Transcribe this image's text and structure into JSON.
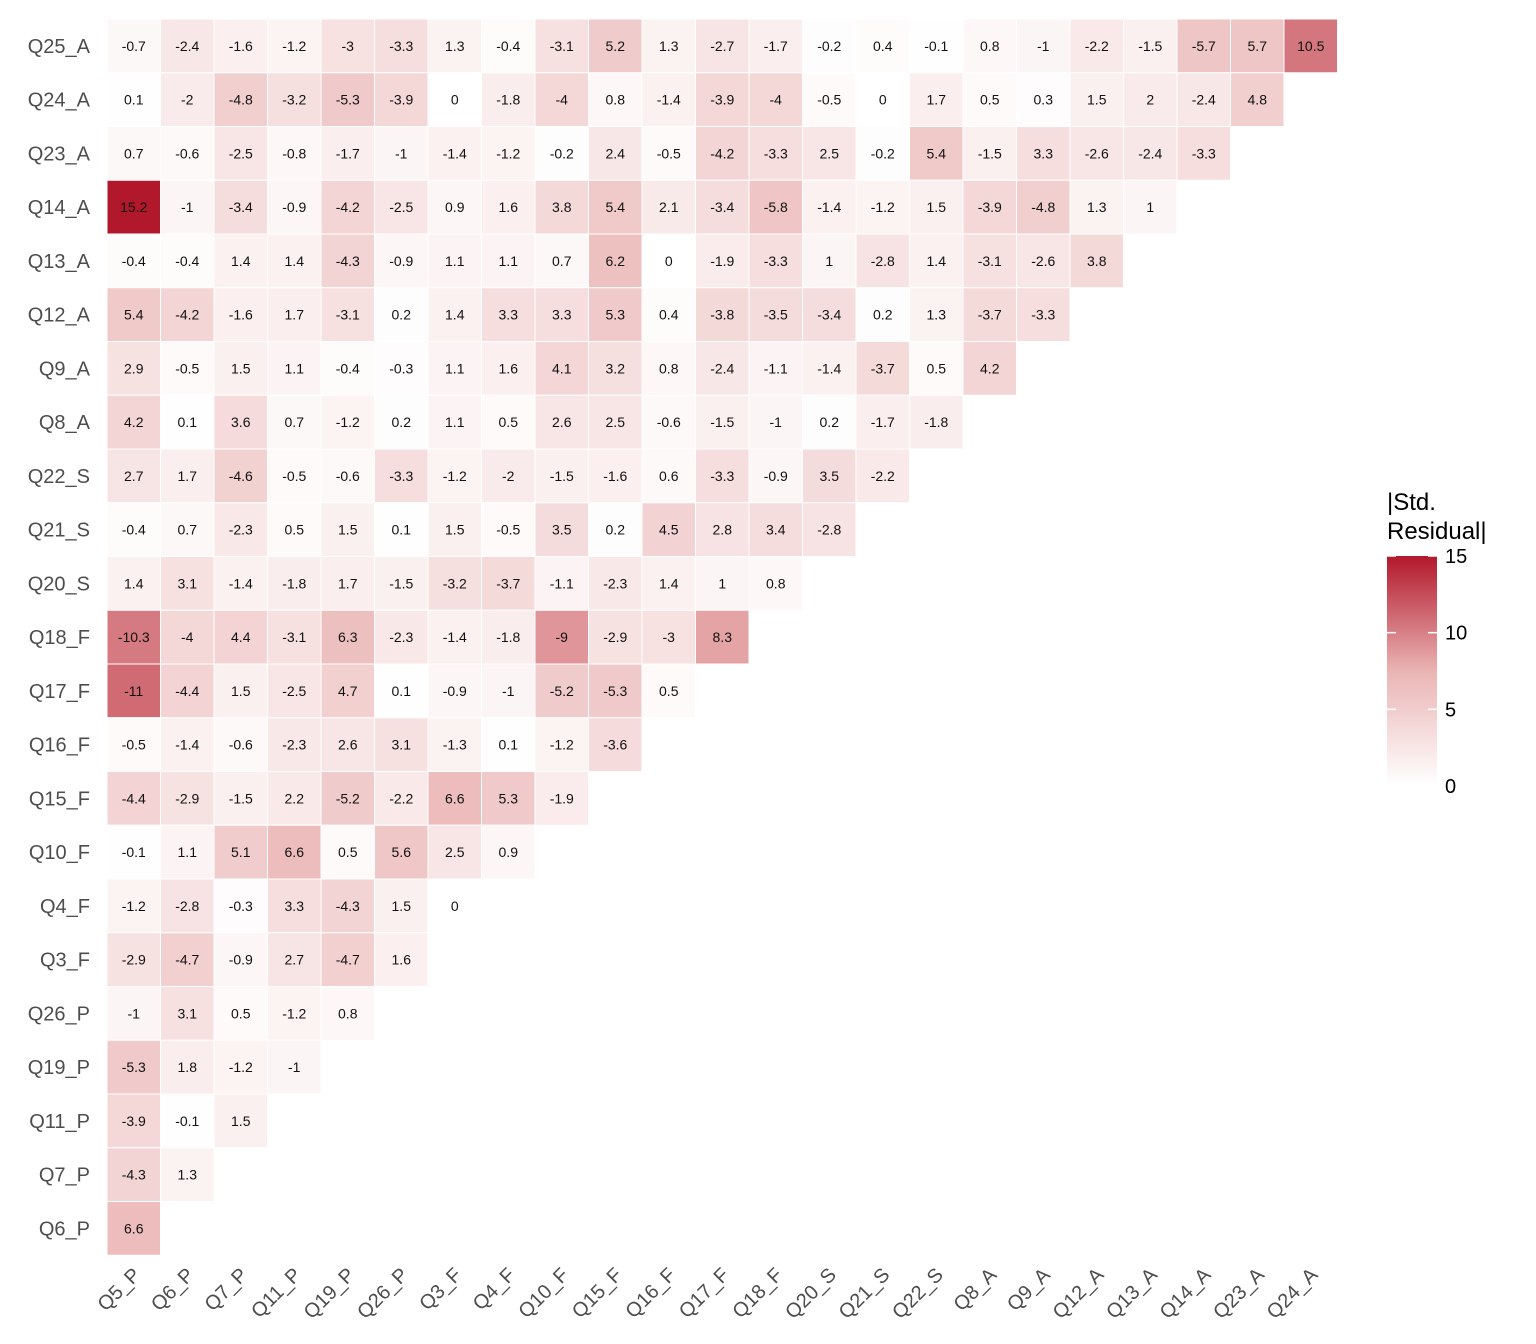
{
  "colors": {
    "low": "#ffffff",
    "mid": "#e6a0a0",
    "high": "#b2182b"
  },
  "chart_data": {
    "type": "heatmap",
    "title": "",
    "xlabel": "",
    "ylabel": "",
    "x_categories": [
      "Q5_P",
      "Q6_P",
      "Q7_P",
      "Q11_P",
      "Q19_P",
      "Q26_P",
      "Q3_F",
      "Q4_F",
      "Q10_F",
      "Q15_F",
      "Q16_F",
      "Q17_F",
      "Q18_F",
      "Q20_S",
      "Q21_S",
      "Q22_S",
      "Q8_A",
      "Q9_A",
      "Q12_A",
      "Q13_A",
      "Q14_A",
      "Q23_A",
      "Q24_A"
    ],
    "y_categories": [
      "Q25_A",
      "Q24_A",
      "Q23_A",
      "Q14_A",
      "Q13_A",
      "Q12_A",
      "Q9_A",
      "Q8_A",
      "Q22_S",
      "Q21_S",
      "Q20_S",
      "Q18_F",
      "Q17_F",
      "Q16_F",
      "Q15_F",
      "Q10_F",
      "Q4_F",
      "Q3_F",
      "Q26_P",
      "Q19_P",
      "Q11_P",
      "Q7_P",
      "Q6_P"
    ],
    "values": [
      [
        -0.7,
        -2.4,
        -1.6,
        -1.2,
        -3,
        -3.3,
        1.3,
        -0.4,
        -3.1,
        5.2,
        1.3,
        -2.7,
        -1.7,
        -0.2,
        0.4,
        -0.1,
        0.8,
        -1,
        -2.2,
        -1.5,
        -5.7,
        5.7,
        10.5
      ],
      [
        0.1,
        -2,
        -4.8,
        -3.2,
        -5.3,
        -3.9,
        0,
        -1.8,
        -4,
        0.8,
        -1.4,
        -3.9,
        -4,
        -0.5,
        0,
        1.7,
        0.5,
        0.3,
        1.5,
        2,
        -2.4,
        4.8
      ],
      [
        0.7,
        -0.6,
        -2.5,
        -0.8,
        -1.7,
        -1,
        -1.4,
        -1.2,
        -0.2,
        2.4,
        -0.5,
        -4.2,
        -3.3,
        2.5,
        -0.2,
        5.4,
        -1.5,
        3.3,
        -2.6,
        -2.4,
        -3.3
      ],
      [
        15.2,
        -1,
        -3.4,
        -0.9,
        -4.2,
        -2.5,
        0.9,
        1.6,
        3.8,
        5.4,
        2.1,
        -3.4,
        -5.8,
        -1.4,
        -1.2,
        1.5,
        -3.9,
        -4.8,
        1.3,
        1
      ],
      [
        -0.4,
        -0.4,
        1.4,
        1.4,
        -4.3,
        -0.9,
        1.1,
        1.1,
        0.7,
        6.2,
        0,
        -1.9,
        -3.3,
        1,
        -2.8,
        1.4,
        -3.1,
        -2.6,
        3.8
      ],
      [
        5.4,
        -4.2,
        -1.6,
        1.7,
        -3.1,
        0.2,
        1.4,
        3.3,
        3.3,
        5.3,
        0.4,
        -3.8,
        -3.5,
        -3.4,
        0.2,
        1.3,
        -3.7,
        -3.3
      ],
      [
        2.9,
        -0.5,
        1.5,
        1.1,
        -0.4,
        -0.3,
        1.1,
        1.6,
        4.1,
        3.2,
        0.8,
        -2.4,
        -1.1,
        -1.4,
        -3.7,
        0.5,
        4.2
      ],
      [
        4.2,
        0.1,
        3.6,
        0.7,
        -1.2,
        0.2,
        1.1,
        0.5,
        2.6,
        2.5,
        -0.6,
        -1.5,
        -1,
        0.2,
        -1.7,
        -1.8
      ],
      [
        2.7,
        1.7,
        -4.6,
        -0.5,
        -0.6,
        -3.3,
        -1.2,
        -2,
        -1.5,
        -1.6,
        0.6,
        -3.3,
        -0.9,
        3.5,
        -2.2
      ],
      [
        -0.4,
        0.7,
        -2.3,
        0.5,
        1.5,
        0.1,
        1.5,
        -0.5,
        3.5,
        0.2,
        4.5,
        2.8,
        3.4,
        -2.8
      ],
      [
        1.4,
        3.1,
        -1.4,
        -1.8,
        1.7,
        -1.5,
        -3.2,
        -3.7,
        -1.1,
        -2.3,
        1.4,
        1,
        0.8
      ],
      [
        -10.3,
        -4,
        4.4,
        -3.1,
        6.3,
        -2.3,
        -1.4,
        -1.8,
        -9,
        -2.9,
        -3,
        8.3
      ],
      [
        -11,
        -4.4,
        1.5,
        -2.5,
        4.7,
        0.1,
        -0.9,
        -1,
        -5.2,
        -5.3,
        0.5
      ],
      [
        -0.5,
        -1.4,
        -0.6,
        -2.3,
        2.6,
        3.1,
        -1.3,
        0.1,
        -1.2,
        -3.6
      ],
      [
        -4.4,
        -2.9,
        -1.5,
        2.2,
        -5.2,
        -2.2,
        6.6,
        5.3,
        -1.9
      ],
      [
        -0.1,
        1.1,
        5.1,
        6.6,
        0.5,
        5.6,
        2.5,
        0.9
      ],
      [
        -1.2,
        -2.8,
        -0.3,
        3.3,
        -4.3,
        1.5,
        0
      ],
      [
        -2.9,
        -4.7,
        -0.9,
        2.7,
        -4.7,
        1.6
      ],
      [
        -1,
        3.1,
        0.5,
        -1.2,
        0.8
      ],
      [
        -5.3,
        1.8,
        -1.2,
        -1
      ],
      [
        -3.9,
        -0.1,
        1.5
      ],
      [
        -4.3,
        1.3
      ],
      [
        6.6
      ]
    ],
    "legend": {
      "title": "|Std.\nResidual|",
      "title_lines": [
        "|Std.",
        "Residual|"
      ],
      "range": [
        0,
        15
      ],
      "ticks": [
        0,
        5,
        10,
        15
      ],
      "placement": "right"
    }
  }
}
